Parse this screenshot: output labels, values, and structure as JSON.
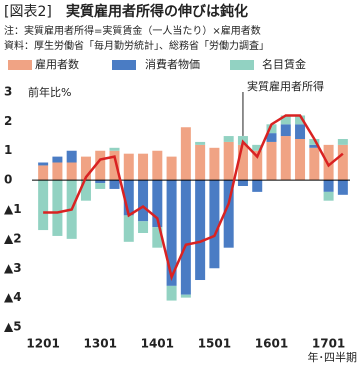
{
  "chart_data": {
    "type": "bar",
    "stacked": true,
    "label": "[図表2]",
    "title": "実質雇用者所得の伸びは鈍化",
    "notes": [
      "注：実質雇用者所得=実質賃金（一人当たり）×雇用者数",
      "資料：厚生労働省「毎月勤労統計」、総務省「労働力調査」"
    ],
    "y_unit": "前年比%",
    "x_unit": "年･四半期",
    "categories": [
      "1201",
      null,
      null,
      null,
      "1301",
      null,
      null,
      null,
      "1401",
      null,
      null,
      null,
      "1501",
      null,
      null,
      null,
      "1601",
      null,
      null,
      null,
      "1701",
      null
    ],
    "series": [
      {
        "name": "雇用者数",
        "color": "#f0a384",
        "values": [
          0.5,
          0.6,
          0.6,
          0.8,
          1.0,
          1.0,
          0.9,
          0.9,
          1.0,
          0.8,
          1.8,
          1.2,
          1.1,
          1.3,
          1.2,
          1.0,
          1.3,
          1.5,
          1.4,
          1.1,
          1.2,
          1.2
        ]
      },
      {
        "name": "消費者物価",
        "color": "#4a7cc4",
        "values": [
          0.1,
          0.2,
          0.4,
          0.0,
          -0.1,
          -0.3,
          -1.2,
          -1.4,
          -1.6,
          -3.6,
          -3.9,
          -3.4,
          -3.0,
          -2.3,
          -0.2,
          -0.4,
          0.3,
          0.4,
          0.5,
          0.1,
          -0.4,
          -0.5
        ]
      },
      {
        "name": "名目賃金",
        "color": "#92d2c2",
        "values": [
          -1.7,
          -1.9,
          -2.0,
          -0.7,
          -0.2,
          0.1,
          -0.9,
          -0.4,
          -0.7,
          -0.5,
          -0.1,
          0.1,
          0.0,
          0.2,
          0.3,
          0.2,
          0.3,
          0.3,
          0.3,
          0.2,
          -0.3,
          0.2
        ]
      },
      {
        "name": "実質雇用者所得",
        "type": "line",
        "color": "#d92222",
        "values": [
          -1.1,
          -1.1,
          -1.0,
          0.1,
          0.7,
          0.8,
          -1.2,
          -0.9,
          -1.3,
          -3.3,
          -2.2,
          -2.1,
          -1.9,
          -0.8,
          1.3,
          0.8,
          1.9,
          2.2,
          2.2,
          1.4,
          0.5,
          0.9
        ]
      }
    ],
    "ylim": [
      -5.5,
      3.5
    ],
    "yticks": [
      {
        "value": -5,
        "label": "▲5"
      },
      {
        "value": -4,
        "label": "▲4"
      },
      {
        "value": -3,
        "label": "▲3"
      },
      {
        "value": -2,
        "label": "▲2"
      },
      {
        "value": -1,
        "label": "▲1"
      },
      0,
      1,
      2,
      3
    ]
  }
}
